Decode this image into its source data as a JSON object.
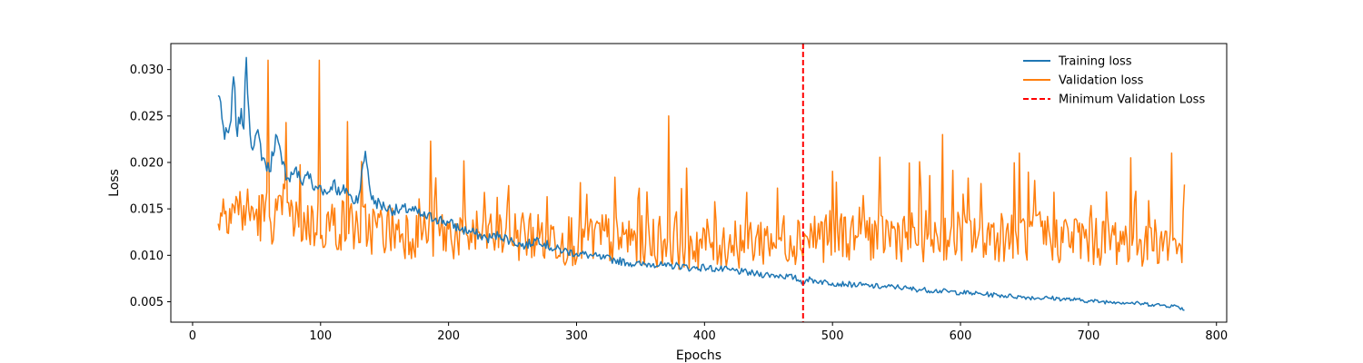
{
  "chart_data": {
    "type": "line",
    "xlabel": "Epochs",
    "ylabel": "Loss",
    "xlim": [
      -17,
      808
    ],
    "ylim": [
      0.0028,
      0.0328
    ],
    "xticks": [
      0,
      100,
      200,
      300,
      400,
      500,
      600,
      700,
      800
    ],
    "yticks": [
      0.005,
      0.01,
      0.015,
      0.02,
      0.025,
      0.03
    ],
    "ytick_labels": [
      "0.005",
      "0.010",
      "0.015",
      "0.020",
      "0.025",
      "0.030"
    ],
    "grid": false,
    "legend_position": "top-right",
    "x_start": 20,
    "x_end": 775,
    "series": [
      {
        "name": "Training loss",
        "color": "#1f77b4",
        "x": [
          20,
          22,
          25,
          28,
          30,
          32,
          35,
          38,
          40,
          42,
          45,
          48,
          50,
          55,
          60,
          65,
          70,
          75,
          80,
          85,
          90,
          95,
          100,
          105,
          110,
          115,
          120,
          125,
          130,
          135,
          140,
          150,
          160,
          170,
          180,
          190,
          200,
          210,
          220,
          230,
          240,
          250,
          260,
          270,
          280,
          290,
          300,
          310,
          320,
          330,
          340,
          350,
          360,
          370,
          380,
          390,
          400,
          410,
          420,
          430,
          440,
          450,
          460,
          470,
          477,
          480,
          490,
          500,
          510,
          520,
          530,
          540,
          550,
          560,
          570,
          580,
          590,
          600,
          610,
          620,
          630,
          640,
          650,
          660,
          670,
          680,
          690,
          700,
          710,
          720,
          730,
          740,
          750,
          760,
          770,
          775
        ],
        "values": [
          0.0272,
          0.0265,
          0.0225,
          0.0232,
          0.0245,
          0.0292,
          0.0228,
          0.0258,
          0.0236,
          0.0313,
          0.023,
          0.0218,
          0.0232,
          0.0205,
          0.019,
          0.023,
          0.0198,
          0.0183,
          0.0193,
          0.0178,
          0.019,
          0.017,
          0.0175,
          0.0166,
          0.018,
          0.0165,
          0.0172,
          0.0158,
          0.0165,
          0.0212,
          0.016,
          0.0152,
          0.0148,
          0.015,
          0.0142,
          0.014,
          0.0135,
          0.0128,
          0.0124,
          0.0118,
          0.0122,
          0.0115,
          0.011,
          0.0118,
          0.0108,
          0.0105,
          0.0102,
          0.01,
          0.0097,
          0.0095,
          0.0092,
          0.009,
          0.0091,
          0.0088,
          0.0089,
          0.0086,
          0.0087,
          0.0085,
          0.0084,
          0.0082,
          0.008,
          0.0079,
          0.0078,
          0.0076,
          0.0071,
          0.0074,
          0.0072,
          0.007,
          0.0069,
          0.0068,
          0.0067,
          0.0066,
          0.0066,
          0.0064,
          0.0063,
          0.0062,
          0.0061,
          0.006,
          0.0059,
          0.0058,
          0.0057,
          0.0056,
          0.0055,
          0.0054,
          0.0054,
          0.0053,
          0.0052,
          0.0051,
          0.005,
          0.005,
          0.0049,
          0.0048,
          0.0047,
          0.0046,
          0.0045,
          0.0041
        ],
        "noise": 0.0009
      },
      {
        "name": "Validation loss",
        "color": "#ff7f0e",
        "x": [
          20,
          25,
          30,
          40,
          50,
          60,
          70,
          80,
          100,
          120,
          150,
          200,
          250,
          300,
          350,
          400,
          450,
          500,
          550,
          600,
          650,
          700,
          750,
          770,
          775
        ],
        "values": [
          0.014,
          0.015,
          0.015,
          0.0145,
          0.014,
          0.014,
          0.0135,
          0.0135,
          0.013,
          0.013,
          0.0125,
          0.012,
          0.012,
          0.0115,
          0.0115,
          0.011,
          0.0115,
          0.012,
          0.012,
          0.012,
          0.012,
          0.0115,
          0.0115,
          0.011,
          0.0108
        ],
        "noise": 0.003,
        "spikes": [
          {
            "x": 59,
            "y": 0.031
          },
          {
            "x": 99,
            "y": 0.031
          },
          {
            "x": 372,
            "y": 0.025
          },
          {
            "x": 121,
            "y": 0.0244
          },
          {
            "x": 73,
            "y": 0.0243
          },
          {
            "x": 186,
            "y": 0.0223
          },
          {
            "x": 586,
            "y": 0.023
          },
          {
            "x": 646,
            "y": 0.021
          },
          {
            "x": 733,
            "y": 0.0205
          },
          {
            "x": 765,
            "y": 0.021
          }
        ]
      },
      {
        "name": "Minimum Validation Loss",
        "color": "#ff0000",
        "style": "dashed",
        "x_line": 477
      }
    ]
  }
}
